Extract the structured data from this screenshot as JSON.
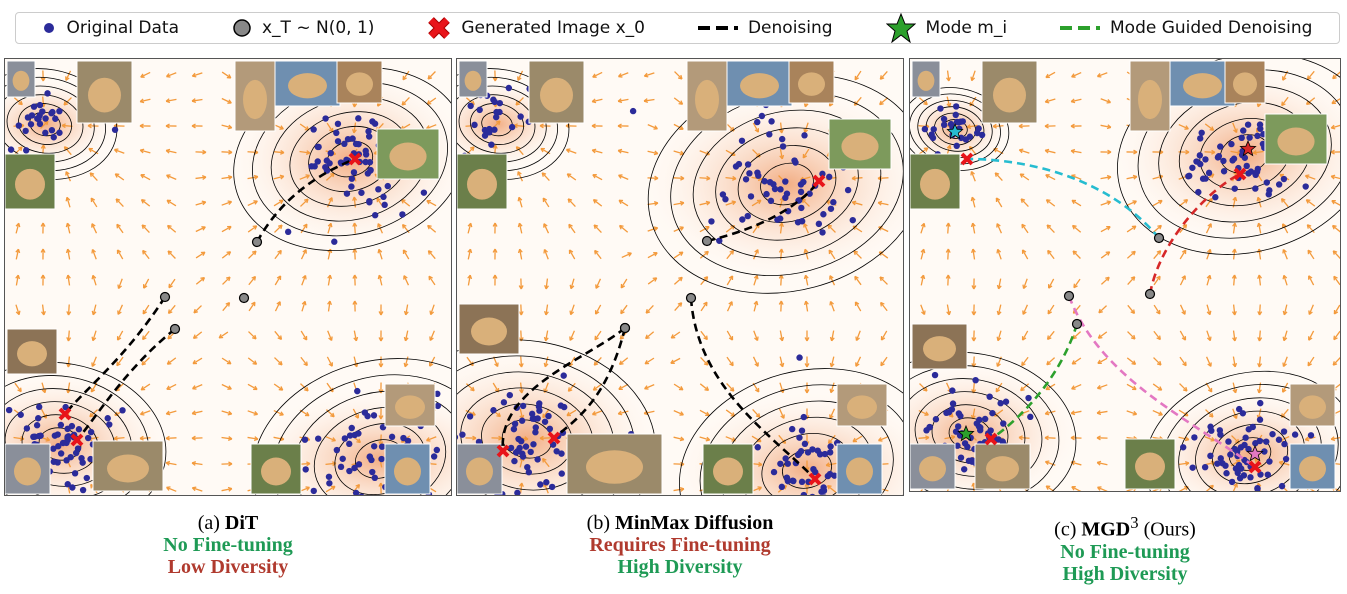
{
  "legend": {
    "original_data": "Original Data",
    "noise": "x_T ~ N(0, 1)",
    "generated": "Generated Image x_0",
    "denoising": "Denoising",
    "mode": "Mode m_i",
    "mode_guided": "Mode Guided Denoising"
  },
  "panels": [
    {
      "prefix": "(a)",
      "name": "DiT",
      "sup": "",
      "suffix": "",
      "line1": "No Fine-tuning",
      "line1_color": "#1e9a55",
      "line2": "Low Diversity",
      "line2_color": "#b03a2e"
    },
    {
      "prefix": "(b)",
      "name": "MinMax Diffusion",
      "sup": "",
      "suffix": "",
      "line1": "Requires Fine-tuning",
      "line1_color": "#b03a2e",
      "line2": "High Diversity",
      "line2_color": "#1e9a55"
    },
    {
      "prefix": "(c)",
      "name": "MGD",
      "sup": "3",
      "suffix": "(Ours)",
      "line1": "No Fine-tuning",
      "line1_color": "#1e9a55",
      "line2": "High Diversity",
      "line2_color": "#1e9a55"
    }
  ],
  "colors": {
    "data_point": "#2b2b9a",
    "noise_point": "#888888",
    "generated_marker": "#e8141a",
    "denoising_line": "#000000",
    "mode_star": "#2ca02c",
    "mode_guided_line": "#2ca02c",
    "vector_field": "#f39a3c",
    "density": "#f6b58a"
  }
}
